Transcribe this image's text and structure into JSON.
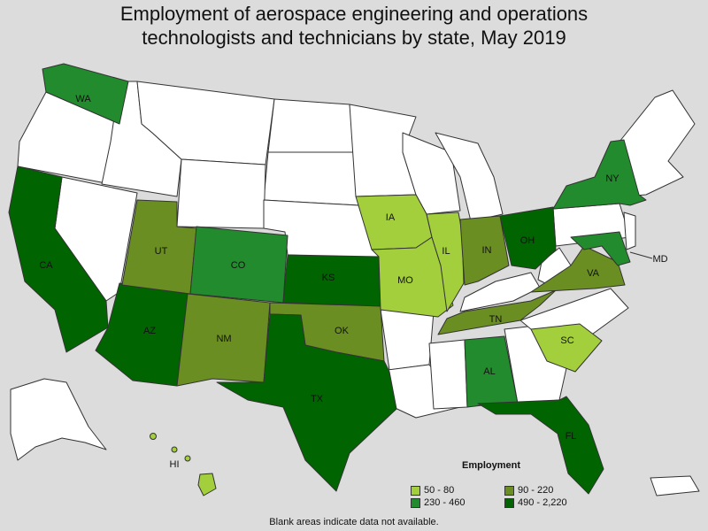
{
  "title": {
    "line1": "Employment of aerospace engineering and operations",
    "line2": "technologists and technicians by state, May 2019"
  },
  "colors": {
    "no_data": "#ffffff",
    "tier1": "#a3cf3d",
    "tier2": "#6b8e23",
    "tier3": "#228b2d",
    "tier4": "#006400",
    "border": "#333333",
    "background": "#dcdcdc"
  },
  "legend": {
    "title": "Employment",
    "items": [
      {
        "label": "50 - 80",
        "color": "#a3cf3d"
      },
      {
        "label": "90 - 220",
        "color": "#6b8e23"
      },
      {
        "label": "230 - 460",
        "color": "#228b2d"
      },
      {
        "label": "490 - 2,220",
        "color": "#006400"
      }
    ]
  },
  "states": [
    {
      "abbr": "WA",
      "tier": "230 - 460"
    },
    {
      "abbr": "NY",
      "tier": "230 - 460"
    },
    {
      "abbr": "CA",
      "tier": "490 - 2,220"
    },
    {
      "abbr": "UT",
      "tier": "90 - 220"
    },
    {
      "abbr": "CO",
      "tier": "230 - 460"
    },
    {
      "abbr": "KS",
      "tier": "490 - 2,220"
    },
    {
      "abbr": "IA",
      "tier": "50 - 80"
    },
    {
      "abbr": "IL",
      "tier": "50 - 80"
    },
    {
      "abbr": "IN",
      "tier": "90 - 220"
    },
    {
      "abbr": "OH",
      "tier": "490 - 2,220"
    },
    {
      "abbr": "MD",
      "tier": "230 - 460"
    },
    {
      "abbr": "VA",
      "tier": "90 - 220"
    },
    {
      "abbr": "AZ",
      "tier": "490 - 2,220"
    },
    {
      "abbr": "NM",
      "tier": "90 - 220"
    },
    {
      "abbr": "OK",
      "tier": "90 - 220"
    },
    {
      "abbr": "MO",
      "tier": "50 - 80"
    },
    {
      "abbr": "TN",
      "tier": "90 - 220"
    },
    {
      "abbr": "SC",
      "tier": "50 - 80"
    },
    {
      "abbr": "AL",
      "tier": "230 - 460"
    },
    {
      "abbr": "TX",
      "tier": "490 - 2,220"
    },
    {
      "abbr": "FL",
      "tier": "490 - 2,220"
    },
    {
      "abbr": "HI",
      "tier": "50 - 80"
    }
  ],
  "footnote": "Blank areas indicate data not available."
}
